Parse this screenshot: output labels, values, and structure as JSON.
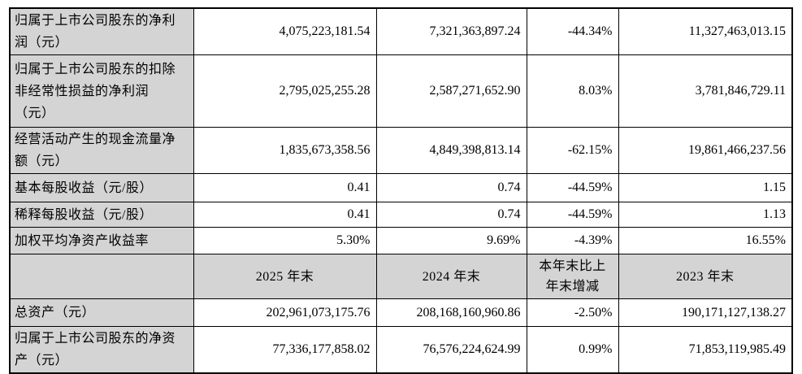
{
  "colors": {
    "shaded_cell_bg": "#d4d4d4",
    "data_cell_bg": "#ffffff",
    "border": "#000000",
    "text": "#000000"
  },
  "table": {
    "description_rows_columns": "indicator label, 2025 value, 2024 value, year-over-year change, 2023 value",
    "rows": [
      {
        "cells": [
          "归属于上市公司股东的净利润（元）",
          "4,075,223,181.54",
          "7,321,363,897.24",
          "-44.34%",
          "11,327,463,013.15"
        ]
      },
      {
        "cells": [
          "归属于上市公司股东的扣除非经常性损益的净利润（元）",
          "2,795,025,255.28",
          "2,587,271,652.90",
          "8.03%",
          "3,781,846,729.11"
        ]
      },
      {
        "cells": [
          "经营活动产生的现金流量净额（元）",
          "1,835,673,358.56",
          "4,849,398,813.14",
          "-62.15%",
          "19,861,466,237.56"
        ]
      },
      {
        "cells": [
          "基本每股收益（元/股）",
          "0.41",
          "0.74",
          "-44.59%",
          "1.15"
        ]
      },
      {
        "cells": [
          "稀释每股收益（元/股）",
          "0.41",
          "0.74",
          "-44.59%",
          "1.13"
        ]
      },
      {
        "cells": [
          "加权平均净资产收益率",
          "5.30%",
          "9.69%",
          "-4.39%",
          "16.55%"
        ]
      },
      {
        "cells": [
          "",
          "2025 年末",
          "2024 年末",
          "本年末比上年末增减",
          "2023 年末"
        ]
      },
      {
        "cells": [
          "总资产（元）",
          "202,961,073,175.76",
          "208,168,160,960.86",
          "-2.50%",
          "190,171,127,138.27"
        ]
      },
      {
        "cells": [
          "归属于上市公司股东的净资产（元）",
          "77,336,177,858.02",
          "76,576,224,624.99",
          "0.99%",
          "71,853,119,985.49"
        ]
      }
    ]
  }
}
